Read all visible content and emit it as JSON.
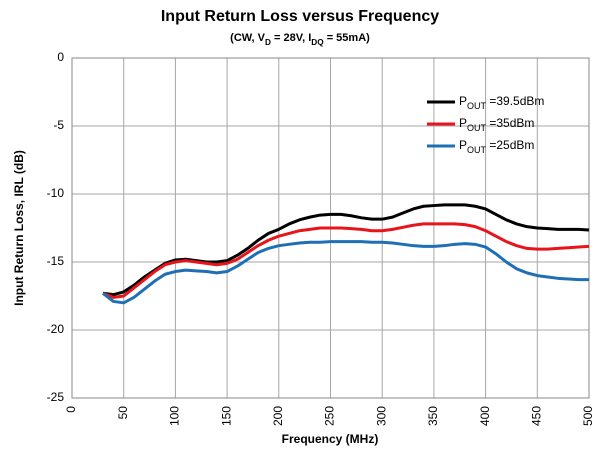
{
  "chart_data": {
    "type": "line",
    "title": "Input Return Loss versus Frequency",
    "subtitle": "(CW, VD = 28V, IDQ = 55mA)",
    "x_label": "Frequency (MHz)",
    "y_label": "Input Return Loss, IRL (dB)",
    "x": [
      30,
      40,
      50,
      60,
      70,
      80,
      90,
      100,
      110,
      120,
      130,
      140,
      150,
      160,
      170,
      180,
      190,
      200,
      210,
      220,
      230,
      240,
      250,
      260,
      270,
      280,
      290,
      300,
      310,
      320,
      330,
      340,
      350,
      360,
      370,
      380,
      390,
      400,
      410,
      420,
      430,
      440,
      450,
      460,
      470,
      480,
      490,
      500
    ],
    "series": [
      {
        "name": "POUT =39.5dBm",
        "color": "#000000",
        "values": [
          -17.3,
          -17.4,
          -17.2,
          -16.7,
          -16.1,
          -15.6,
          -15.1,
          -14.85,
          -14.8,
          -14.9,
          -15,
          -15,
          -14.9,
          -14.5,
          -14,
          -13.4,
          -12.9,
          -12.6,
          -12.2,
          -11.9,
          -11.7,
          -11.55,
          -11.5,
          -11.5,
          -11.6,
          -11.75,
          -11.85,
          -11.85,
          -11.7,
          -11.4,
          -11.1,
          -10.9,
          -10.85,
          -10.8,
          -10.8,
          -10.8,
          -10.9,
          -11.1,
          -11.5,
          -11.9,
          -12.2,
          -12.4,
          -12.5,
          -12.55,
          -12.6,
          -12.6,
          -12.6,
          -12.65
        ]
      },
      {
        "name": "POUT =35dBm",
        "color": "#e8141b",
        "values": [
          -17.3,
          -17.6,
          -17.5,
          -16.9,
          -16.3,
          -15.7,
          -15.2,
          -15,
          -14.9,
          -15,
          -15.1,
          -15.2,
          -15.1,
          -14.8,
          -14.3,
          -13.8,
          -13.4,
          -13.1,
          -12.9,
          -12.7,
          -12.6,
          -12.5,
          -12.5,
          -12.5,
          -12.55,
          -12.6,
          -12.7,
          -12.7,
          -12.6,
          -12.45,
          -12.3,
          -12.2,
          -12.2,
          -12.2,
          -12.2,
          -12.25,
          -12.4,
          -12.7,
          -13.1,
          -13.5,
          -13.8,
          -14,
          -14.05,
          -14.05,
          -14,
          -13.95,
          -13.9,
          -13.85
        ]
      },
      {
        "name": "POUT =25dBm",
        "color": "#1f6fb5",
        "values": [
          -17.3,
          -17.9,
          -18,
          -17.6,
          -17,
          -16.4,
          -15.9,
          -15.7,
          -15.6,
          -15.65,
          -15.7,
          -15.8,
          -15.7,
          -15.3,
          -14.8,
          -14.3,
          -14,
          -13.8,
          -13.7,
          -13.6,
          -13.55,
          -13.55,
          -13.5,
          -13.5,
          -13.5,
          -13.5,
          -13.55,
          -13.55,
          -13.6,
          -13.7,
          -13.8,
          -13.85,
          -13.85,
          -13.8,
          -13.7,
          -13.65,
          -13.7,
          -13.9,
          -14.4,
          -15,
          -15.5,
          -15.8,
          -16,
          -16.1,
          -16.2,
          -16.25,
          -16.3,
          -16.3
        ]
      }
    ],
    "xlim": [
      0,
      500
    ],
    "xticks": [
      0,
      50,
      100,
      150,
      200,
      250,
      300,
      350,
      400,
      450,
      500
    ],
    "ylim": [
      -25,
      0
    ],
    "yticks": [
      -25,
      -20,
      -15,
      -10,
      -5,
      0
    ],
    "grid": true,
    "legend": "upper right"
  }
}
